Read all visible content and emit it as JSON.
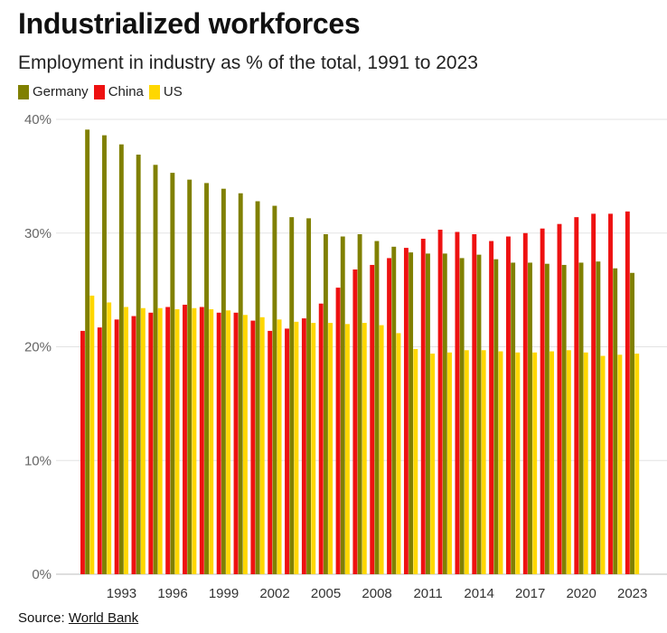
{
  "title": "Industrialized workforces",
  "subtitle": "Employment in industry as % of the total, 1991 to 2023",
  "source": {
    "label": "Source:",
    "link_text": "World Bank"
  },
  "chart_data": {
    "type": "bar",
    "categories": [
      1991,
      1992,
      1993,
      1994,
      1995,
      1996,
      1997,
      1998,
      1999,
      2000,
      2001,
      2002,
      2003,
      2004,
      2005,
      2006,
      2007,
      2008,
      2009,
      2010,
      2011,
      2012,
      2013,
      2014,
      2015,
      2016,
      2017,
      2018,
      2019,
      2020,
      2021,
      2022,
      2023
    ],
    "x_tick_labels": [
      "1993",
      "1996",
      "1999",
      "2002",
      "2005",
      "2008",
      "2011",
      "2014",
      "2017",
      "2020",
      "2023"
    ],
    "x_tick_years": [
      1993,
      1996,
      1999,
      2002,
      2005,
      2008,
      2011,
      2014,
      2017,
      2020,
      2023
    ],
    "y_ticks": [
      0,
      10,
      20,
      30,
      40
    ],
    "y_tick_labels": [
      "0%",
      "10%",
      "20%",
      "30%",
      "40%"
    ],
    "ylim": [
      0,
      40
    ],
    "grid": true,
    "legend_position": "top-left",
    "series": [
      {
        "name": "Germany",
        "color": "#808000",
        "values": [
          39.1,
          38.6,
          37.8,
          36.9,
          36.0,
          35.3,
          34.7,
          34.4,
          33.9,
          33.5,
          32.8,
          32.4,
          31.4,
          31.3,
          29.9,
          29.7,
          29.9,
          29.3,
          28.8,
          28.3,
          28.2,
          28.2,
          27.8,
          28.1,
          27.7,
          27.4,
          27.4,
          27.3,
          27.2,
          27.4,
          27.5,
          26.9,
          26.5
        ]
      },
      {
        "name": "China",
        "color": "#ee1111",
        "values": [
          21.4,
          21.7,
          22.4,
          22.7,
          23.0,
          23.5,
          23.7,
          23.5,
          23.0,
          23.0,
          22.3,
          21.4,
          21.6,
          22.5,
          23.8,
          25.2,
          26.8,
          27.2,
          27.8,
          28.7,
          29.5,
          30.3,
          30.1,
          29.9,
          29.3,
          29.7,
          30.0,
          30.4,
          30.8,
          31.4,
          31.7,
          31.7,
          31.9
        ]
      },
      {
        "name": "US",
        "color": "#ffd700",
        "values": [
          24.5,
          23.9,
          23.5,
          23.4,
          23.4,
          23.3,
          23.4,
          23.3,
          23.2,
          22.8,
          22.6,
          22.4,
          22.2,
          22.1,
          22.1,
          22.0,
          22.1,
          21.9,
          21.2,
          19.8,
          19.4,
          19.5,
          19.7,
          19.7,
          19.6,
          19.5,
          19.5,
          19.6,
          19.7,
          19.5,
          19.2,
          19.3,
          19.4
        ]
      }
    ]
  }
}
